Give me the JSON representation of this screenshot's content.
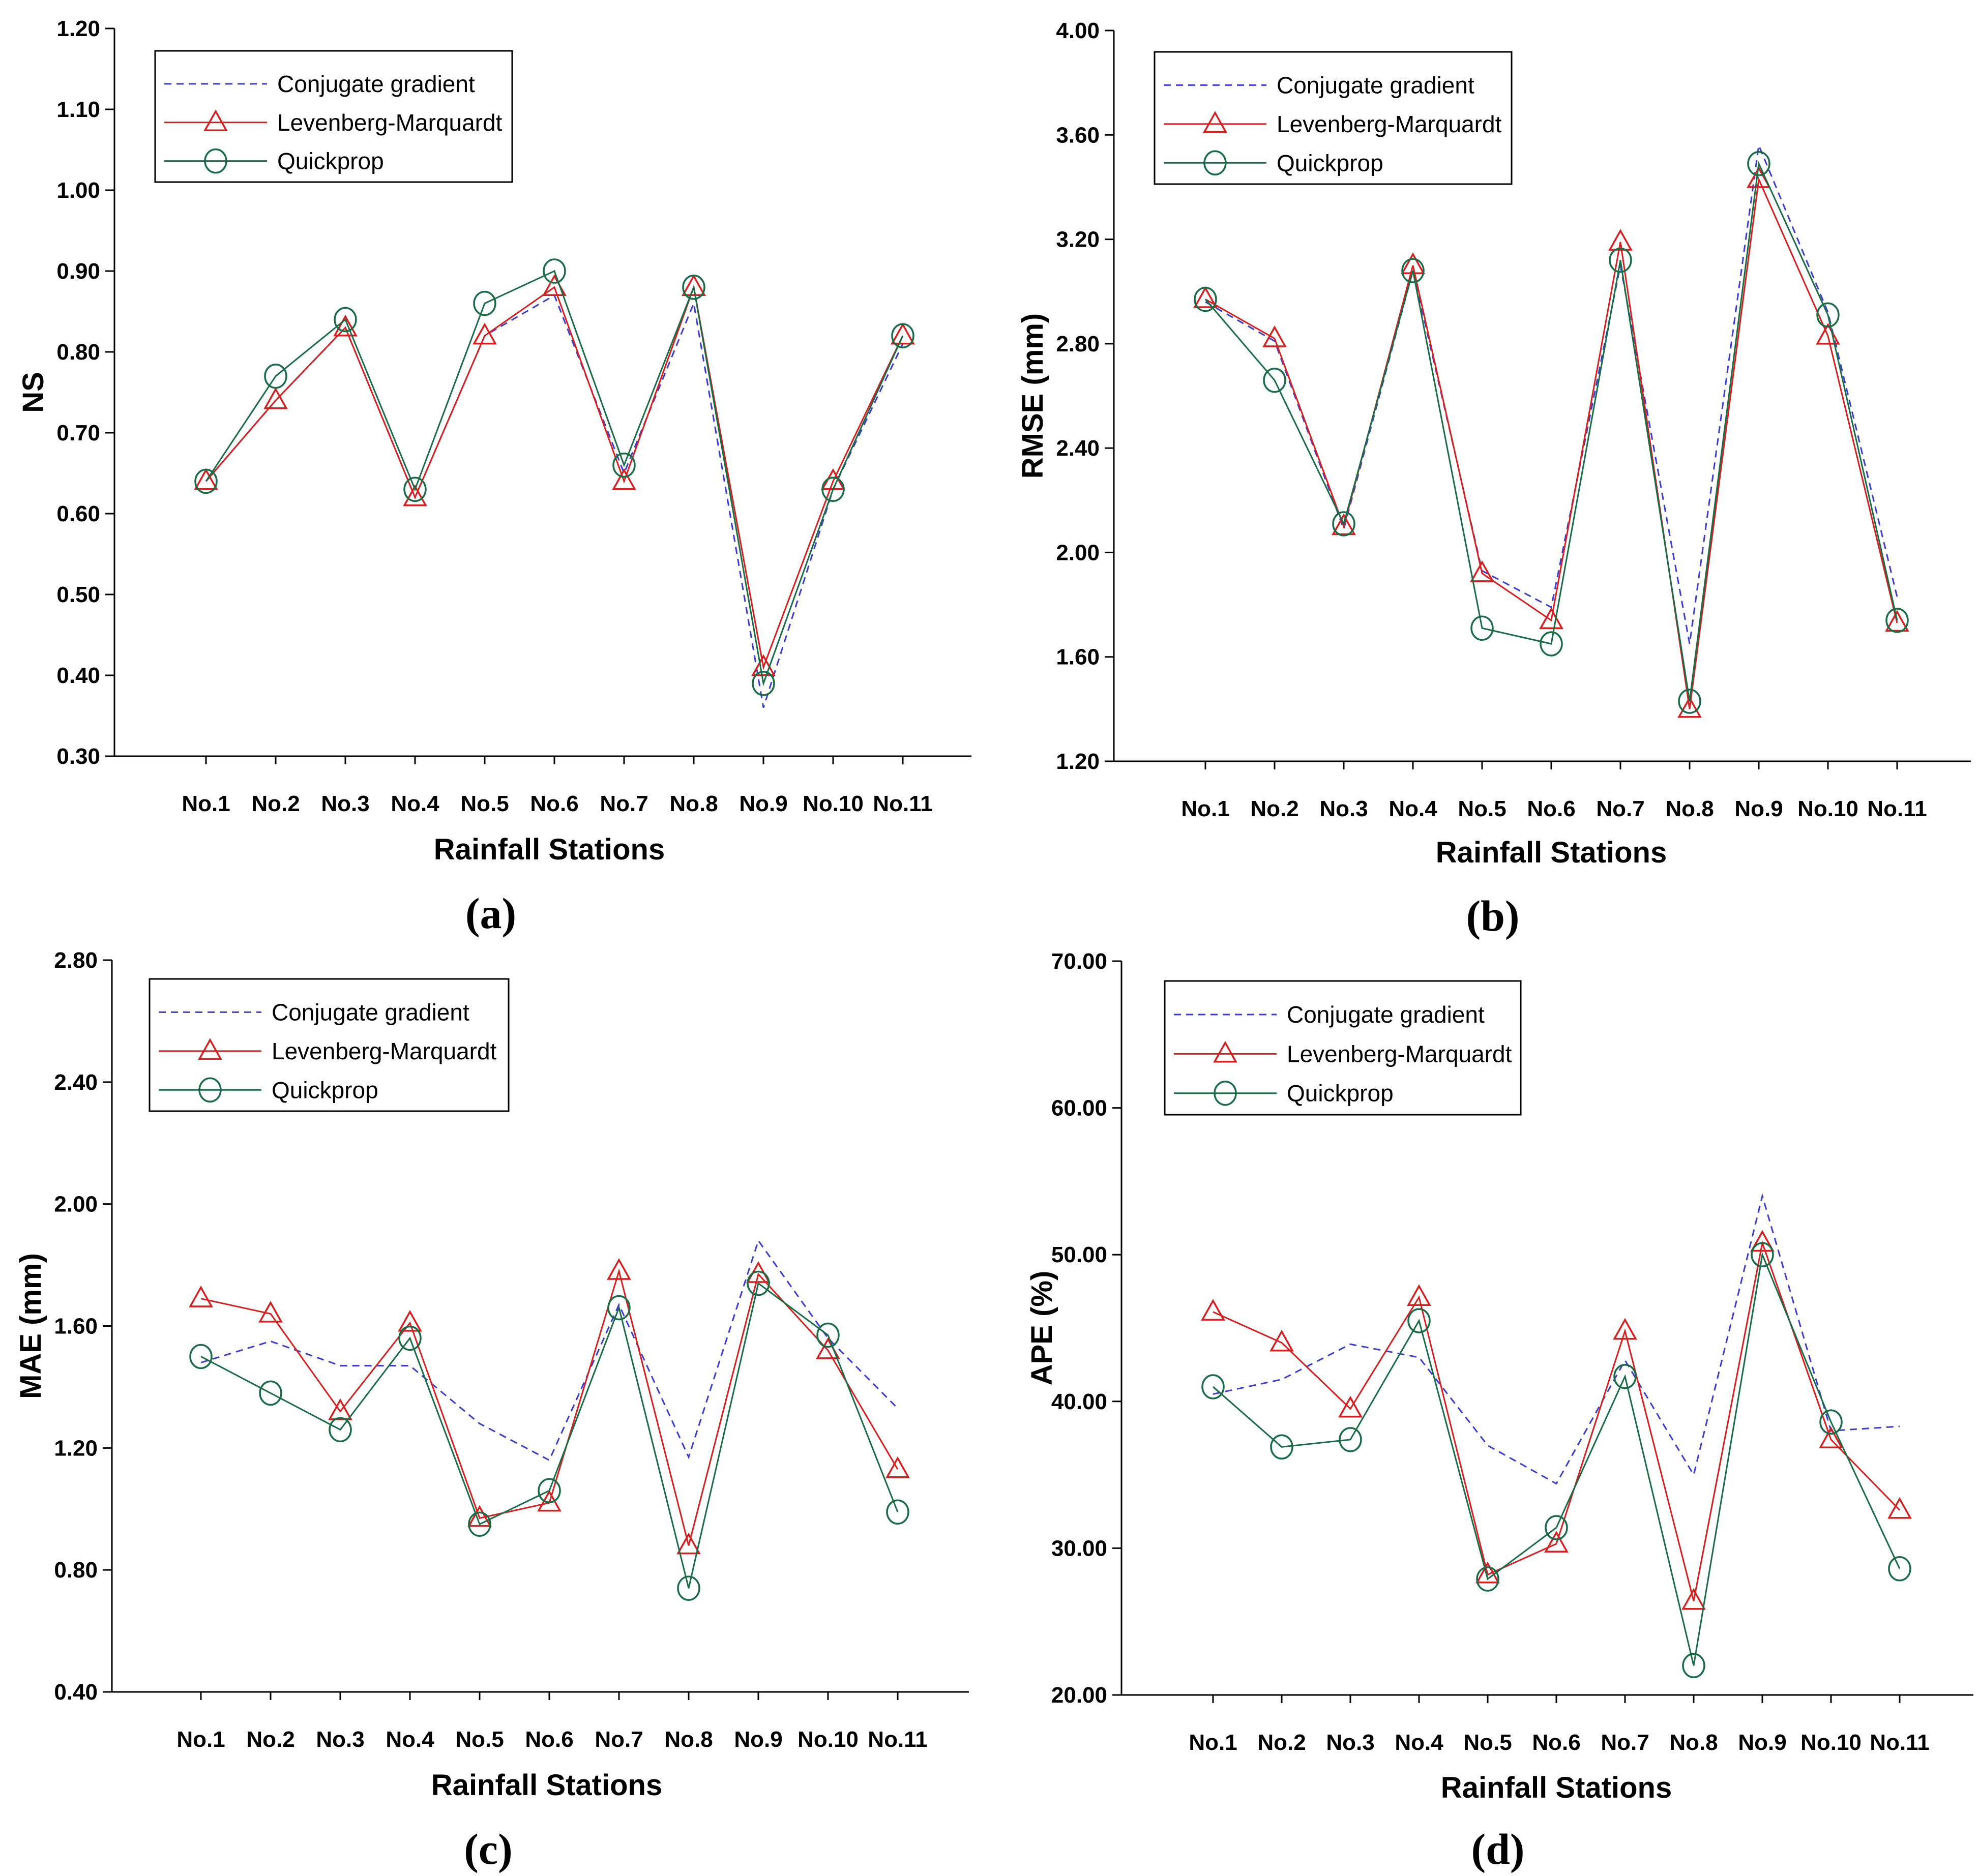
{
  "colors": {
    "conjugate": "#3b3bd6",
    "levenberg": "#d42020",
    "quickprop": "#1a6b47"
  },
  "chart_data": [
    {
      "type": "line",
      "panel": "(a)",
      "xlabel": "Rainfall Stations",
      "ylabel": "NS",
      "ylim": [
        0.3,
        1.2
      ],
      "yticks": [
        "0.30",
        "0.40",
        "0.50",
        "0.60",
        "0.70",
        "0.80",
        "0.90",
        "1.00",
        "1.10",
        "1.20"
      ],
      "categories": [
        "No.1",
        "No.2",
        "No.3",
        "No.4",
        "No.5",
        "No.6",
        "No.7",
        "No.8",
        "No.9",
        "No.10",
        "No.11"
      ],
      "series": [
        {
          "name": "Conjugate gradient",
          "values": [
            0.64,
            0.74,
            0.83,
            0.62,
            0.82,
            0.87,
            0.65,
            0.86,
            0.36,
            0.63,
            0.81
          ]
        },
        {
          "name": "Levenberg-Marquardt",
          "values": [
            0.64,
            0.74,
            0.83,
            0.62,
            0.82,
            0.88,
            0.64,
            0.88,
            0.41,
            0.64,
            0.82
          ]
        },
        {
          "name": "Quickprop",
          "values": [
            0.64,
            0.77,
            0.84,
            0.63,
            0.86,
            0.9,
            0.66,
            0.88,
            0.39,
            0.63,
            0.82
          ]
        }
      ],
      "legend": "top-left"
    },
    {
      "type": "line",
      "panel": "(b)",
      "xlabel": "Rainfall Stations",
      "ylabel": "RMSE (mm)",
      "ylim": [
        1.2,
        4.0
      ],
      "yticks": [
        "1.20",
        "1.60",
        "2.00",
        "2.40",
        "2.80",
        "3.20",
        "3.60",
        "4.00"
      ],
      "categories": [
        "No.1",
        "No.2",
        "No.3",
        "No.4",
        "No.5",
        "No.6",
        "No.7",
        "No.8",
        "No.9",
        "No.10",
        "No.11"
      ],
      "series": [
        {
          "name": "Conjugate gradient",
          "values": [
            2.96,
            2.81,
            2.09,
            3.08,
            1.93,
            1.79,
            3.1,
            1.65,
            3.56,
            2.92,
            1.83
          ]
        },
        {
          "name": "Levenberg-Marquardt",
          "values": [
            2.97,
            2.82,
            2.1,
            3.1,
            1.92,
            1.74,
            3.19,
            1.4,
            3.43,
            2.83,
            1.73
          ]
        },
        {
          "name": "Quickprop",
          "values": [
            2.97,
            2.66,
            2.11,
            3.08,
            1.71,
            1.65,
            3.12,
            1.43,
            3.49,
            2.91,
            1.74
          ]
        }
      ],
      "legend": "top-left"
    },
    {
      "type": "line",
      "panel": "(c)",
      "xlabel": "Rainfall Stations",
      "ylabel": "MAE (mm)",
      "ylim": [
        0.4,
        2.8
      ],
      "yticks": [
        "0.40",
        "0.80",
        "1.20",
        "1.60",
        "2.00",
        "2.40",
        "2.80"
      ],
      "categories": [
        "No.1",
        "No.2",
        "No.3",
        "No.4",
        "No.5",
        "No.6",
        "No.7",
        "No.8",
        "No.9",
        "No.10",
        "No.11"
      ],
      "series": [
        {
          "name": "Conjugate gradient",
          "values": [
            1.48,
            1.55,
            1.47,
            1.47,
            1.28,
            1.16,
            1.67,
            1.17,
            1.88,
            1.56,
            1.33
          ]
        },
        {
          "name": "Levenberg-Marquardt",
          "values": [
            1.69,
            1.64,
            1.32,
            1.61,
            0.97,
            1.02,
            1.78,
            0.88,
            1.77,
            1.52,
            1.13
          ]
        },
        {
          "name": "Quickprop",
          "values": [
            1.5,
            1.38,
            1.26,
            1.56,
            0.95,
            1.06,
            1.66,
            0.74,
            1.74,
            1.57,
            0.99
          ]
        }
      ],
      "legend": "top-left"
    },
    {
      "type": "line",
      "panel": "(d)",
      "xlabel": "Rainfall Stations",
      "ylabel": "APE (%)",
      "ylim": [
        20,
        70
      ],
      "yticks": [
        "20.00",
        "30.00",
        "40.00",
        "50.00",
        "60.00",
        "70.00"
      ],
      "categories": [
        "No.1",
        "No.2",
        "No.3",
        "No.4",
        "No.5",
        "No.6",
        "No.7",
        "No.8",
        "No.9",
        "No.10",
        "No.11"
      ],
      "series": [
        {
          "name": "Conjugate gradient",
          "values": [
            40.5,
            41.5,
            43.9,
            43.0,
            37.0,
            34.4,
            42.8,
            35.0,
            54.0,
            38.0,
            38.3
          ]
        },
        {
          "name": "Levenberg-Marquardt",
          "values": [
            46.1,
            44.0,
            39.5,
            47.1,
            28.2,
            30.3,
            44.8,
            26.4,
            50.8,
            37.4,
            32.6
          ]
        },
        {
          "name": "Quickprop",
          "values": [
            41.0,
            36.9,
            37.4,
            45.5,
            27.9,
            31.4,
            41.7,
            22.0,
            50.0,
            38.6,
            28.6
          ]
        }
      ],
      "legend": "top-left"
    }
  ]
}
